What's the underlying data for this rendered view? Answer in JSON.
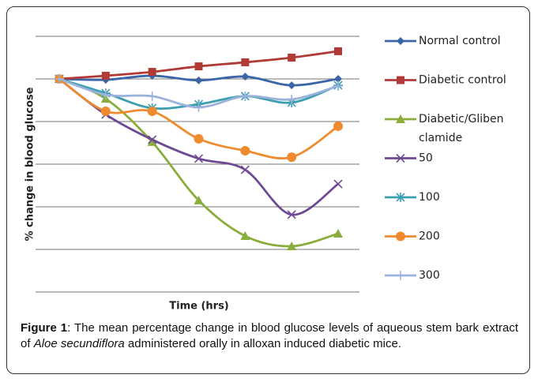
{
  "chart_data": {
    "type": "line",
    "ylabel": "% change in blood glucose",
    "xlabel": "Time (hrs)",
    "categories": [
      null,
      null,
      null,
      null,
      null,
      null,
      null
    ],
    "ylim": [
      -100,
      20
    ],
    "gridlines": [
      20,
      0,
      -20,
      -40,
      -60,
      -80,
      -100
    ],
    "grid": true,
    "smooth": true,
    "legend": "right",
    "series": [
      {
        "name": "Normal control",
        "color": "#3a66a8",
        "marker": "diamond",
        "values": [
          0,
          -0.4,
          1.5,
          -0.7,
          1.1,
          -3,
          0
        ]
      },
      {
        "name": "Diabetic control",
        "color": "#b23a36",
        "marker": "square",
        "values": [
          0,
          1.5,
          3.3,
          5.9,
          7.8,
          10,
          13
        ]
      },
      {
        "name": "Diabetic/Gliben clamide",
        "color": "#8aad3c",
        "marker": "triangle",
        "values": [
          0,
          -9.3,
          -29.6,
          -57,
          -73.7,
          -78.5,
          -72.6
        ]
      },
      {
        "name": "50",
        "color": "#6e4a94",
        "marker": "x",
        "values": [
          0,
          -16.7,
          -28.5,
          -37.4,
          -42.6,
          -63.7,
          -49.3
        ]
      },
      {
        "name": "100",
        "color": "#3b9fb0",
        "marker": "asterisk",
        "values": [
          0,
          -6.7,
          -13.7,
          -11.9,
          -8.1,
          -11.1,
          -3
        ]
      },
      {
        "name": "200",
        "color": "#ef8a2f",
        "marker": "circle",
        "values": [
          0,
          -15.2,
          -15.2,
          -28.1,
          -33.7,
          -36.7,
          -22.2
        ]
      },
      {
        "name": "300",
        "color": "#9bb3db",
        "marker": "plus",
        "values": [
          0,
          -7.4,
          -8.1,
          -13.3,
          -8.1,
          -9.6,
          -3.3
        ]
      }
    ]
  },
  "caption": {
    "label": "Figure 1",
    "text_before": ": The mean percentage change in blood glucose levels of aqueous stem bark extract of ",
    "species": "Aloe secundiflora",
    "text_after": " administered orally in alloxan induced diabetic mice."
  }
}
